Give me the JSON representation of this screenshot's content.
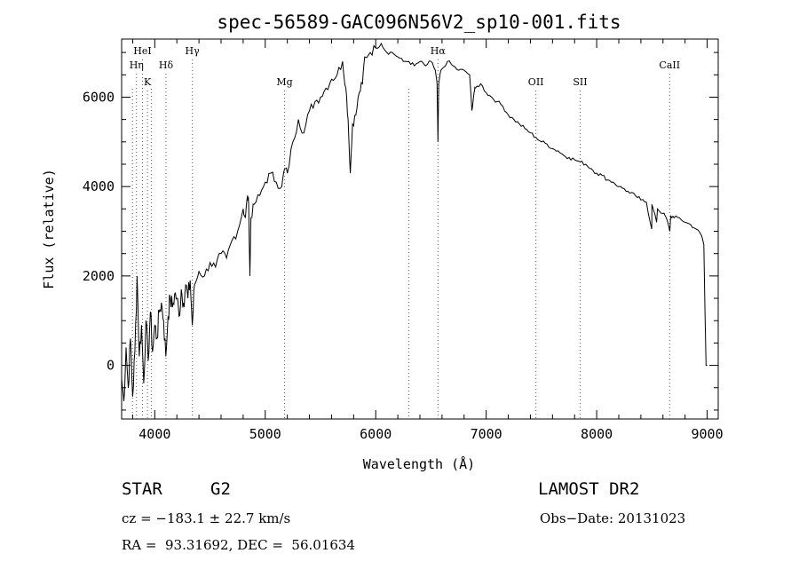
{
  "chart_data": {
    "type": "line",
    "title": "spec-56589-GAC096N56V2_sp10-001.fits",
    "xlabel": "Wavelength (Å)",
    "ylabel": "Flux (relative)",
    "xlim": [
      3700,
      9100
    ],
    "ylim": [
      -1200,
      7300
    ],
    "x_ticks": [
      4000,
      5000,
      6000,
      7000,
      8000,
      9000
    ],
    "y_ticks": [
      0,
      2000,
      4000,
      6000
    ],
    "x_tick_labels": [
      "4000",
      "5000",
      "6000",
      "7000",
      "8000",
      "9000"
    ],
    "y_tick_labels": [
      "0",
      "2000",
      "4000",
      "6000"
    ],
    "lines": [
      {
        "label": "HeI",
        "x": 3889,
        "row": 0
      },
      {
        "label": "Hη",
        "x": 3835,
        "row": 1
      },
      {
        "label": "Hδ",
        "x": 4102,
        "row": 1
      },
      {
        "label": "Hγ",
        "x": 4340,
        "row": 0
      },
      {
        "label": "K",
        "x": 3934,
        "row": 2
      },
      {
        "label": "Mg",
        "x": 5175,
        "row": 2
      },
      {
        "label": "Hα",
        "x": 6563,
        "row": 0
      },
      {
        "label": "OII",
        "x": 7450,
        "row": 2
      },
      {
        "label": "SII",
        "x": 7850,
        "row": 2
      },
      {
        "label": "CaII",
        "x": 8660,
        "row": 1
      }
    ],
    "extra_dotted_lines": [
      3798,
      3970,
      6300
    ],
    "spectrum": [
      [
        3700,
        -300
      ],
      [
        3720,
        -800
      ],
      [
        3740,
        400
      ],
      [
        3760,
        -500
      ],
      [
        3780,
        600
      ],
      [
        3800,
        -700
      ],
      [
        3820,
        300
      ],
      [
        3840,
        2000
      ],
      [
        3860,
        200
      ],
      [
        3880,
        900
      ],
      [
        3900,
        -400
      ],
      [
        3920,
        1000
      ],
      [
        3940,
        100
      ],
      [
        3960,
        1200
      ],
      [
        3980,
        300
      ],
      [
        4000,
        900
      ],
      [
        4020,
        600
      ],
      [
        4040,
        1200
      ],
      [
        4060,
        1400
      ],
      [
        4080,
        1000
      ],
      [
        4100,
        200
      ],
      [
        4120,
        1100
      ],
      [
        4140,
        1500
      ],
      [
        4160,
        1300
      ],
      [
        4180,
        1600
      ],
      [
        4200,
        1500
      ],
      [
        4220,
        1100
      ],
      [
        4240,
        1700
      ],
      [
        4260,
        1400
      ],
      [
        4280,
        1800
      ],
      [
        4300,
        1500
      ],
      [
        4320,
        1900
      ],
      [
        4340,
        900
      ],
      [
        4360,
        1800
      ],
      [
        4400,
        2100
      ],
      [
        4450,
        2000
      ],
      [
        4500,
        2300
      ],
      [
        4550,
        2200
      ],
      [
        4600,
        2500
      ],
      [
        4650,
        2400
      ],
      [
        4700,
        2800
      ],
      [
        4750,
        3000
      ],
      [
        4800,
        3500
      ],
      [
        4820,
        3300
      ],
      [
        4840,
        3800
      ],
      [
        4850,
        3600
      ],
      [
        4861,
        2000
      ],
      [
        4870,
        3300
      ],
      [
        4900,
        3600
      ],
      [
        4950,
        3800
      ],
      [
        5000,
        4100
      ],
      [
        5050,
        4300
      ],
      [
        5100,
        4100
      ],
      [
        5150,
        4000
      ],
      [
        5175,
        4400
      ],
      [
        5200,
        4300
      ],
      [
        5250,
        5000
      ],
      [
        5300,
        5500
      ],
      [
        5350,
        5200
      ],
      [
        5400,
        5700
      ],
      [
        5450,
        5900
      ],
      [
        5500,
        6000
      ],
      [
        5550,
        6200
      ],
      [
        5600,
        6400
      ],
      [
        5650,
        6500
      ],
      [
        5700,
        6800
      ],
      [
        5730,
        6200
      ],
      [
        5750,
        5500
      ],
      [
        5770,
        4300
      ],
      [
        5790,
        5400
      ],
      [
        5820,
        5600
      ],
      [
        5850,
        6100
      ],
      [
        5880,
        6300
      ],
      [
        5900,
        6900
      ],
      [
        5950,
        7000
      ],
      [
        6000,
        7100
      ],
      [
        6050,
        7200
      ],
      [
        6100,
        7000
      ],
      [
        6150,
        7000
      ],
      [
        6200,
        6900
      ],
      [
        6250,
        6800
      ],
      [
        6300,
        6800
      ],
      [
        6350,
        6700
      ],
      [
        6400,
        6800
      ],
      [
        6450,
        6700
      ],
      [
        6500,
        6800
      ],
      [
        6540,
        6600
      ],
      [
        6555,
        6300
      ],
      [
        6563,
        5000
      ],
      [
        6570,
        6300
      ],
      [
        6590,
        6600
      ],
      [
        6650,
        6800
      ],
      [
        6700,
        6700
      ],
      [
        6750,
        6600
      ],
      [
        6800,
        6600
      ],
      [
        6850,
        6500
      ],
      [
        6870,
        5700
      ],
      [
        6890,
        6100
      ],
      [
        6900,
        6200
      ],
      [
        6950,
        6300
      ],
      [
        7000,
        6100
      ],
      [
        7050,
        6000
      ],
      [
        7100,
        5900
      ],
      [
        7150,
        5800
      ],
      [
        7200,
        5600
      ],
      [
        7250,
        5500
      ],
      [
        7300,
        5400
      ],
      [
        7350,
        5300
      ],
      [
        7400,
        5200
      ],
      [
        7450,
        5100
      ],
      [
        7500,
        5000
      ],
      [
        7550,
        4950
      ],
      [
        7600,
        4850
      ],
      [
        7650,
        4800
      ],
      [
        7700,
        4700
      ],
      [
        7750,
        4650
      ],
      [
        7800,
        4600
      ],
      [
        7850,
        4550
      ],
      [
        7900,
        4500
      ],
      [
        7950,
        4400
      ],
      [
        8000,
        4300
      ],
      [
        8050,
        4250
      ],
      [
        8100,
        4150
      ],
      [
        8150,
        4100
      ],
      [
        8200,
        4000
      ],
      [
        8250,
        3950
      ],
      [
        8300,
        3850
      ],
      [
        8350,
        3800
      ],
      [
        8400,
        3700
      ],
      [
        8450,
        3650
      ],
      [
        8498,
        3050
      ],
      [
        8500,
        3600
      ],
      [
        8542,
        3200
      ],
      [
        8550,
        3500
      ],
      [
        8600,
        3400
      ],
      [
        8630,
        3300
      ],
      [
        8662,
        3000
      ],
      [
        8670,
        3350
      ],
      [
        8700,
        3300
      ],
      [
        8750,
        3300
      ],
      [
        8800,
        3200
      ],
      [
        8850,
        3150
      ],
      [
        8900,
        3050
      ],
      [
        8950,
        2900
      ],
      [
        8970,
        2700
      ],
      [
        8980,
        1200
      ],
      [
        8990,
        0
      ],
      [
        9000,
        0
      ]
    ]
  },
  "info": {
    "object_type": "STAR",
    "subclass": "G2",
    "survey": "LAMOST DR2",
    "velocity": "cz = −183.1 ± 22.7 km/s",
    "obs_date": "Obs−Date: 20131023",
    "coords": "RA =  93.31692, DEC =  56.01634"
  }
}
